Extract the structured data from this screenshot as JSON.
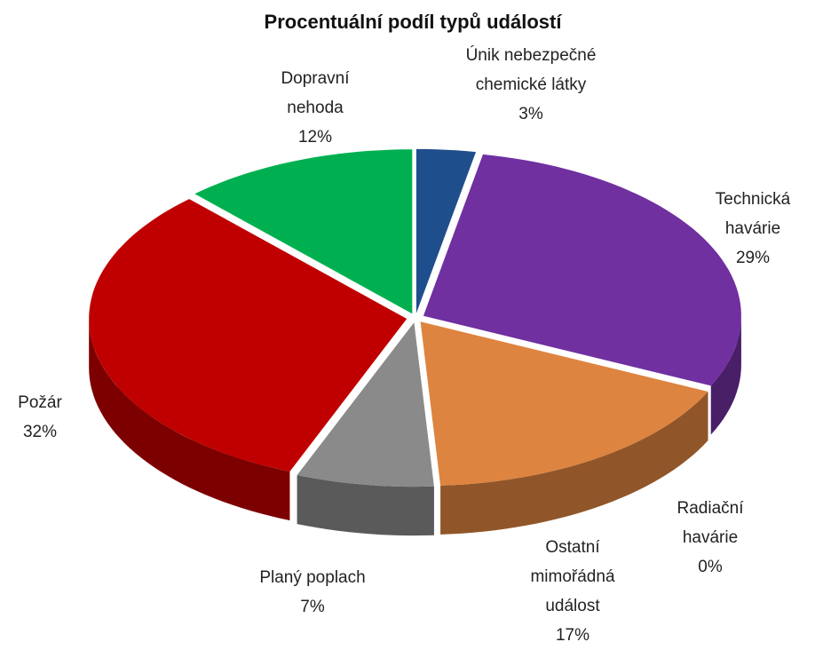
{
  "chart_data": {
    "type": "pie",
    "title": "Procentuální podíl typů událostí",
    "categories": [
      "Dopravní nehoda",
      "Únik nebezpečné chemické látky",
      "Technická havárie",
      "Radiační havárie",
      "Ostatní mimořádná událost",
      "Planý poplach",
      "Požár"
    ],
    "values": [
      12,
      3,
      29,
      0,
      17,
      7,
      32
    ],
    "value_labels": [
      "12%",
      "3%",
      "29%",
      "0%",
      "17%",
      "7%",
      "32%"
    ],
    "colors": [
      "#00b050",
      "#1f4e8c",
      "#7030a0",
      "#c09000",
      "#dd8440",
      "#8a8a8a",
      "#c00000"
    ]
  }
}
